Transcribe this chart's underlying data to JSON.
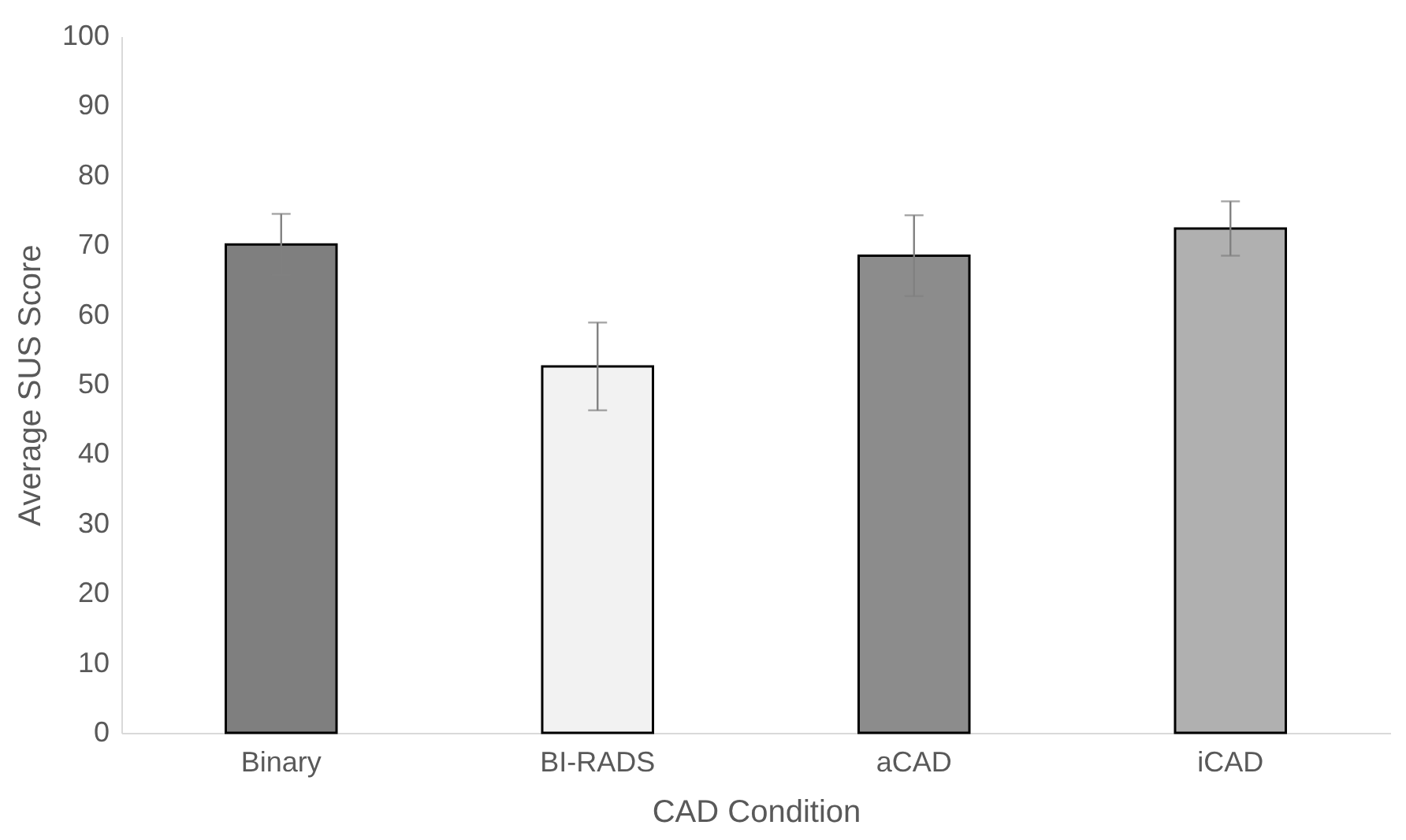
{
  "chart_data": {
    "type": "bar",
    "xlabel": "CAD Condition",
    "ylabel": "Average SUS Score",
    "categories": [
      "Binary",
      "BI-RADS",
      "aCAD",
      "iCAD"
    ],
    "values": [
      70.1,
      52.6,
      68.5,
      72.4
    ],
    "colors": [
      "#7f7f7f",
      "#f2f2f2",
      "#8c8c8c",
      "#b0b0b0"
    ],
    "errors": [
      4.4,
      6.3,
      5.8,
      3.9
    ],
    "ylim": [
      0,
      100
    ],
    "yticks": [
      0,
      10,
      20,
      30,
      40,
      50,
      60,
      70,
      80,
      90,
      100
    ],
    "grid": false
  }
}
